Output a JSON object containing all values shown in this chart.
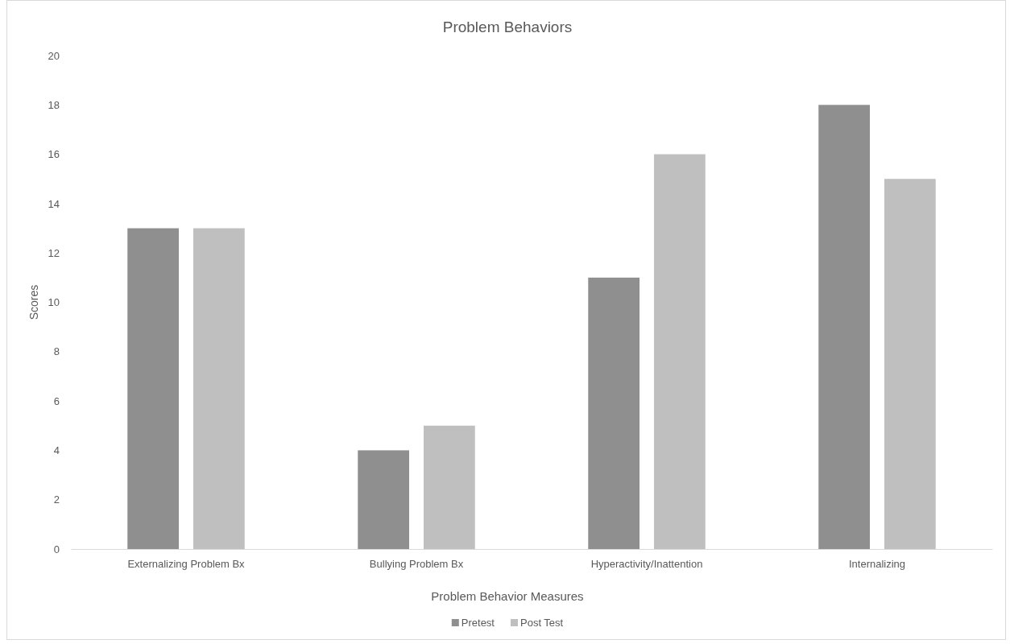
{
  "chart_data": {
    "type": "bar",
    "title": "Problem Behaviors",
    "xlabel": "Problem Behavior Measures",
    "ylabel": "Scores",
    "categories": [
      "Externalizing Problem Bx",
      "Bullying Problem Bx",
      "Hyperactivity/Inattention",
      "Internalizing"
    ],
    "series": [
      {
        "name": "Pretest",
        "color": "#8f8f8f",
        "values": [
          13,
          4,
          11,
          18
        ]
      },
      {
        "name": "Post Test",
        "color": "#bfbfbf",
        "values": [
          13,
          5,
          16,
          15
        ]
      }
    ],
    "ylim": [
      0,
      20
    ],
    "yticks": [
      0,
      2,
      4,
      6,
      8,
      10,
      12,
      14,
      16,
      18,
      20
    ],
    "grid": false,
    "legend": "bottom"
  }
}
